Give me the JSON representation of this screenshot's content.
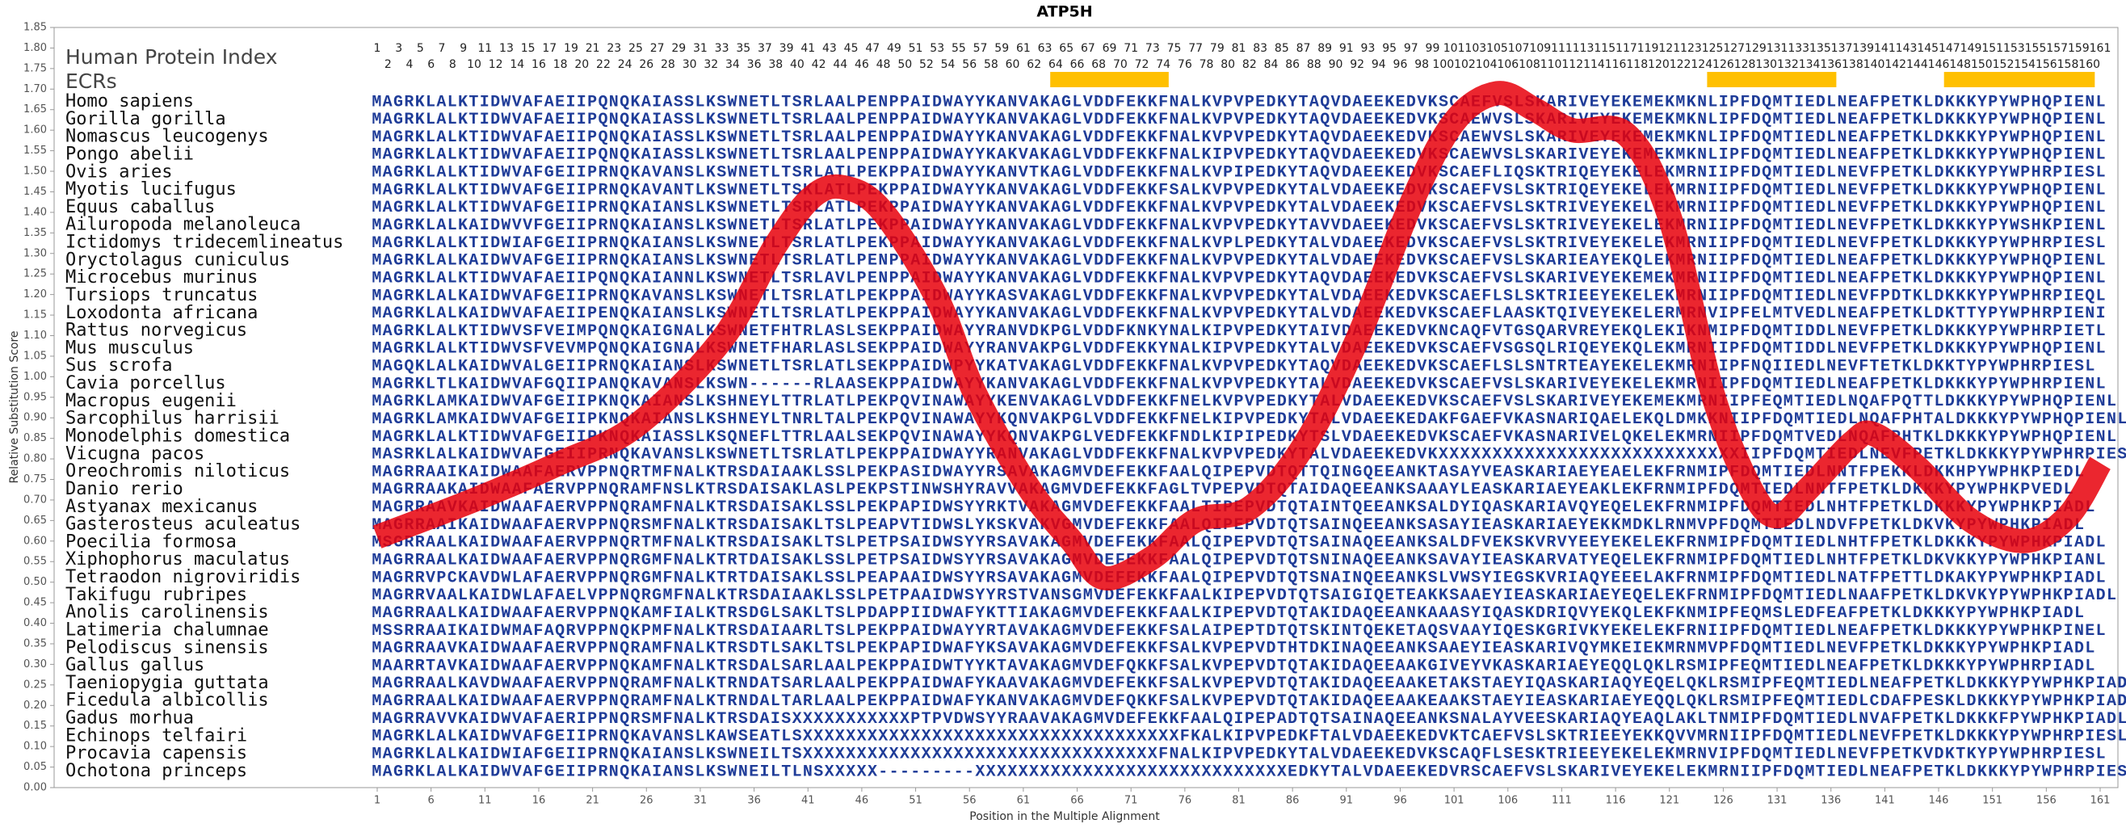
{
  "chart_data": {
    "type": "line",
    "title": "ATP5H",
    "xlabel": "Position in the Multiple Alignment",
    "ylabel": "Relative Substitution Score",
    "xlim": [
      1,
      161
    ],
    "ylim": [
      0,
      1.85
    ],
    "xticks": [
      1,
      6,
      11,
      16,
      21,
      26,
      31,
      36,
      41,
      46,
      51,
      56,
      61,
      66,
      71,
      76,
      81,
      86,
      91,
      96,
      101,
      106,
      111,
      116,
      121,
      126,
      131,
      136,
      141,
      146,
      151,
      156,
      161
    ],
    "yticks": [
      {
        "value": 0,
        "label": "0.00"
      },
      0.05,
      {
        "value": 0.1,
        "label": "0.10"
      },
      0.15,
      {
        "value": 0.2,
        "label": "0.20"
      },
      0.25,
      {
        "value": 0.3,
        "label": "0.30"
      },
      0.35,
      {
        "value": 0.4,
        "label": "0.40"
      },
      0.45,
      {
        "value": 0.5,
        "label": "0.50"
      },
      0.55,
      {
        "value": 0.6,
        "label": "0.60"
      },
      0.65,
      {
        "value": 0.7,
        "label": "0.70"
      },
      0.75,
      {
        "value": 0.8,
        "label": "0.80"
      },
      0.85,
      {
        "value": 0.9,
        "label": "0.90"
      },
      0.95,
      {
        "value": 1,
        "label": "1.00"
      },
      1.05,
      {
        "value": 1.1,
        "label": "1.10"
      },
      1.15,
      {
        "value": 1.2,
        "label": "1.20"
      },
      1.25,
      {
        "value": 1.3,
        "label": "1.30"
      },
      1.35,
      {
        "value": 1.4,
        "label": "1.40"
      },
      1.45,
      {
        "value": 1.5,
        "label": "1.50"
      },
      1.55,
      {
        "value": 1.6,
        "label": "1.60"
      },
      1.65,
      {
        "value": 1.7,
        "label": "1.70"
      },
      1.75,
      {
        "value": 1.8,
        "label": "1.80"
      },
      1.85
    ],
    "color": "#e8000b",
    "x": [
      1,
      10,
      18,
      25,
      33,
      38,
      41.5,
      44.5,
      48,
      53,
      56.5,
      61.5,
      65.5,
      68.5,
      73,
      77,
      82,
      87,
      92,
      97,
      101,
      105,
      108.5,
      112,
      117,
      121,
      125,
      128.5,
      131,
      134,
      138,
      140,
      144,
      149,
      154,
      158,
      161
    ],
    "values": [
      0.61,
      0.7,
      0.79,
      0.88,
      1.09,
      1.32,
      1.44,
      1.46,
      1.4,
      1.19,
      0.96,
      0.73,
      0.6,
      0.51,
      0.56,
      0.65,
      0.68,
      0.83,
      1.09,
      1.42,
      1.62,
      1.69,
      1.65,
      1.6,
      1.59,
      1.39,
      0.96,
      0.73,
      0.66,
      0.73,
      0.84,
      0.86,
      0.78,
      0.65,
      0.6,
      0.66,
      0.79
    ],
    "track_labels": [
      "Human Protein Index",
      "ECRs"
    ],
    "position_numbers": [
      1,
      2,
      3,
      4,
      5,
      6,
      7,
      8,
      9,
      10,
      11,
      12,
      13,
      14,
      15,
      16,
      17,
      18,
      19,
      20,
      21,
      22,
      23,
      24,
      25,
      26,
      27,
      28,
      29,
      30,
      31,
      32,
      33,
      34,
      35,
      36,
      37,
      38,
      39,
      40,
      41,
      42,
      43,
      44,
      45,
      46,
      47,
      48,
      49,
      50,
      51,
      52,
      53,
      54,
      55,
      56,
      57,
      58,
      59,
      60,
      61,
      62,
      63,
      64,
      65,
      66,
      67,
      68,
      69,
      70,
      71,
      72,
      73,
      74,
      75,
      76,
      77,
      78,
      79,
      80,
      81,
      82,
      83,
      84,
      85,
      86,
      87,
      88,
      89,
      90,
      91,
      92,
      93,
      94,
      95,
      96,
      97,
      98,
      99,
      100,
      101,
      102,
      103,
      104,
      105,
      106,
      107,
      108,
      109,
      110,
      111,
      112,
      113,
      114,
      115,
      116,
      117,
      118,
      119,
      120,
      121,
      122,
      123,
      124,
      125,
      126,
      127,
      128,
      129,
      130,
      131,
      132,
      133,
      134,
      135,
      136,
      137,
      138,
      139,
      140,
      141,
      142,
      143,
      144,
      145,
      146,
      147,
      148,
      149,
      150,
      151,
      152,
      153,
      154,
      155,
      156,
      157,
      158,
      159,
      160,
      161
    ],
    "ecr_color": "#ffc000",
    "ecrs": [
      [
        64,
        74
      ],
      [
        125,
        136
      ],
      [
        147,
        160
      ]
    ],
    "alignment": [
      {
        "species": "Homo sapiens",
        "sequence": "MAGRKLALKTIDWVAFAEIIPQNQKAIASSLKSWNETLTSRLAALPENPPAIDWAYYKANVAKAGLVDDFEKKFNALKVPVPEDKYTAQVDAEEKEDVKSCAEFVSLSKARIVEYEKEMEKMKNLIPFDQMTIEDLNEAFPETKLDKKKYPYWPHQPIENL"
      },
      {
        "species": "Gorilla gorilla",
        "sequence": "MAGRKLALKTIDWVAFAEIIPQNQKAIASSLKSWNETLTSRLAALPENPPAIDWAYYKANVAKAGLVDDFEKKFNALKVPVPEDKYTAQVDAEEKEDVKSCAEWVSLSKARIVEYEKEMEKMKNLIPFDQMTIEDLNEAFPETKLDKKKYPYWPHQPIENL"
      },
      {
        "species": "Nomascus leucogenys",
        "sequence": "MAGRKLALKTIDWVAFAEIIPQNQKAIASSLKSWNETLTSRLAALPENPPAIDWAYYKANVAKAGLVDDFEKKFNALKVPVPEDKYTAQVDAEEKEDVKSCAEWVSLSKARIVEYEKEMEKMKNLIPFDQMTIEDLNEAFPETKLDKKKYPYWPHQPIENL"
      },
      {
        "species": "Pongo abelii",
        "sequence": "MAGRKLALKTIDWVAFAEIIPQNQKAIASSLKSWNETLTSRLAALPENPPAIDWAYYKAKVAKAGLVDDFEKKFNALKIPVPEDKYTAQVDAEEKEDVKSCAEWVSLSKARIVEYEKEMEKMKNLIPFDQMTIEDLNEAFPETKLDKKKYPYWPHQPIENL"
      },
      {
        "species": "Ovis aries",
        "sequence": "MAGRKLALKTIDWVAFGEIIPRNQKAVANSLKSWNETLTSRLATLPEKPPAIDWAYYKANVTKAGLVDDFEKKFNALKVPIPEDKYTAQVDAEEKEDVKSCAEFLIQSKTRIQEYEKELEKMRNIIPFDQMTIEDLNEVFPETKLDKKKYPYWPHRPIESL"
      },
      {
        "species": "Myotis lucifugus",
        "sequence": "MAGRKLALKTIDWVAFGEIIPRNQKAVANTLKSWNETLTSKLATLPEKPPAIDWAYYKANVAKAGLVDDFEKKFSALKVPVPEDKYTALVDAEEKEDVKSCAEFVSLSKTRIQEYEKELEKMRNIIPFDQMTIEDLNEVFPETKLDKKKYPYWPHQPIENL"
      },
      {
        "species": "Equus caballus",
        "sequence": "MAGRKLALKTIDWVAFGEIIPRNQKAIANSLKSWNETLTSRLATLPEKPPAIDWAYYKANVAKAGLVDDFEKKFNALKVPVPEDKYTALVDAEEKEDVKSCAEFVSLSKTRIVEYEKELEKMRNIIPFDQMTIEDLNEVFPETKLDKKKYPYWPHQPIENL"
      },
      {
        "species": "Ailuropoda melanoleuca",
        "sequence": "MAGRKLALKAIDWVVFGEIIPRNQKAIANSLKSWNETLTSRLATLPEKPPAIDWAYYKANVAKAGLVDDFEKKFNALKVPVPEDKYTAVVDAEEKEDVKSCAEFVSLSKTRIVEYEKELEKMRNIIPFDQMTIEDLNEVFPETKLDKKKYPYWSHKPIENL"
      },
      {
        "species": "Ictidomys tridecemlineatus",
        "sequence": "MAGRKLALKTIDWIAFGEIIPRNQKAIANSLKSWNETLTSRLATLPEKPPAIDWAYYKANVAKAGLVDDFEKKFNALKVPLPEDKYTALVDAEEKEDVKSCAEFVSLSKTRIVEYEKELEKMRNIIPFDQMTIEDLNEVFPETKLDKKKYPYWPHRPIESL"
      },
      {
        "species": "Oryctolagus cuniculus",
        "sequence": "MAGRKLALKAIDWVAFGEIIPRNQKAIANSLKSWNETLTSRLATLPENPPAIDWAYYKANVAKAGLVDDFEKKFNALKVPVPEDKYTALVDAEEKEDVKSCAEFVSLSKARIEAYEKQLEKMRNIIPFDQMTIEDLNEAFPETKLDKKKYPYWPHQPIENL"
      },
      {
        "species": "Microcebus murinus",
        "sequence": "MAGRKLALKTIDWVAFAEIIPQNQKAIANNLKSWNETLTSRLAVLPENPPAIDWAYYKANVAKAGLVDDFEKKFNALKVPVPEDKYTAQVDAEEKEDVKSCAEFVSLSKARIVEYEKEMEKMRNIIPFDQMTIEDLNEAFPETKLDKKKYPYWPHQPIENL"
      },
      {
        "species": "Tursiops truncatus",
        "sequence": "MAGRKLALKAIDWVAFGEIIPRNQKAVANSLKSWNETLTSRLATLPEKPPAIDWAYYKASVAKAGLVDDFEKKFNALKVPVPEDKYTALVDAEEKEDVKSCAEFLSLSKTRIEEYEKELEKMRNIIPFDQMTIEDLNEVFPDTKLDKKKYPYWPHRPIEQL"
      },
      {
        "species": "Loxodonta africana",
        "sequence": "MAGRKLALKAIDWVAFAEIIPENQKAIANSLKSWNETLTSRLATLPEKPPAIDWAYYKANVAKAGLVDDFEKKFNALKVPVPEDKYTALVDAEEKEDVKSCAEFLAASKTQIVEYEKELERMRNVIPFELMTVEDLNEAFPETKLDKTTYPYWPHRPIENI"
      },
      {
        "species": "Rattus norvegicus",
        "sequence": "MAGRKLALKTIDWVSFVEIMPQNQKAIGNALKSWNETFHTRLASLSEKPPAIDWAYYRANVDKPGLVDDFKNKYNALKIPVPEDKYTAIVDAEEKEDVKNCAQFVTGSQARVREYEKQLEKIKNMIPFDQMTIDDLNEVFPETKLDKKKYPYWPHRPIETL"
      },
      {
        "species": "Mus musculus",
        "sequence": "MAGRKLALKTIDWVSFVEVMPQNQKAIGNALKSWNETFHARLASLSEKPPAIDWAYYRANVAKPGLVDDFEKKYNALKIPVPEDKYTALVDAEEKEDVKSCAEFVSGSQLRIQEYEKQLEKMRNIIPFDQMTIDDLNEVFPETKLDKKKYPYWPHQPIENL"
      },
      {
        "species": "Sus scrofa",
        "sequence": "MAGQKLALKAIDWVALGEIIPRNQKAIANSLKSWNETLTSRLATLSEKPPAIDWPYYKATVAKAGLVDDFEKKFNALKVPVPEDKYTAQVDAEEKEDVKSCAEFLSLSNTRTEAYEKELEKMRNIIPFNQIIEDLNEVFTETKLDKKTYPYWPHRPIESL"
      },
      {
        "species": "Cavia porcellus",
        "sequence": "MAGRKLTLKAIDWVAFGQIIPANQKAVANSLKSWN------RLAASEKPPAIDWAYYKANVAKAGLVDDFEKKFNALKVPVPEDKYTALVDAEEKEDVKSCAEFVSLSKARIVEYEKELEKMRNIIPFDQMTIEDLNEAFPETKLDKKKYPYWPHRPIENL"
      },
      {
        "species": "Macropus eugenii",
        "sequence": "MAGRKLAMKAIDWVAFGEIIPKNQKAIANSLKSHNEYLTTRLATLPEKPQVINAWAYYKENVAKAGLVDDFEKKFNELKVPVPEDKYTALVDAEEKEDVKSCAEFVSLSKARIVEYEKEMEKMRNIIPFEQMTIEDLNQAFPQTTLDKKKYPYWPHQPIENL"
      },
      {
        "species": "Sarcophilus harrisii",
        "sequence": "MAGRKLAMKAIDWVAFGEIIPKNQKAIANSLKSHNEYLTNRLTALPEKPQVINAWAYYKQNVAKPGLVDDFEKKFNELKIPVPEDKYTALVDAEEKEDAKFGAEFVKASNARIQAELEKQLDMKKNIIPFDQMTIEDLNQAFPHTALDKKKYPYWPHQPIENL"
      },
      {
        "species": "Monodelphis domestica",
        "sequence": "MAGRKLALKTIDWVAFGEIIPKNQKAIASSLKSQNEFLTTRLAALSEKPQVINAWAYYKQNVAKPGLVEDFEKKFNDLKIPIPEDKYTSLVDAEEKEDVKSCAEFVKASNARIVELQKELEKMRNIIPFDQMTVEDLNQAFPHTKLDKKKYPYWPHQPIENL"
      },
      {
        "species": "Vicugna pacos",
        "sequence": "MASRKLALKAIDWVAFGEIIPRNQKAVANSLKSWNETLTSRLATLPEKPPAIDWAYYRANVAKAGLVDDFEKKFNALKVPVPEDKYTALVDAEEKEDVKXXXXXXXXXXXXXXXXXXXXXXXXXXXXIIPFDQMTIEDLNEVFPETKLDKKKYPYWPHRPIESL"
      },
      {
        "species": "Oreochromis niloticus",
        "sequence": "MAGRRAAIKAIDWAAFAERVPPNQRTMFNALKTRSDAIAAKLSSLPEKPASIDWAYYRSAVAKAGMVDEFEKKFAALQIPEPVDTQTTQINGQEEANKTASAYVEASKARIAEYEAELEKFRNMIPFDQMTIEDLNNTFPEKKLDKKHPYWPHKPIEDL"
      },
      {
        "species": "Danio rerio",
        "sequence": "MAGRRAAKAIDWAAFAERVPPNQRAMFNSLKTRSDAISAKLASLPEKPSTINWSHYRAVVAKAGMVDEFEKKFAGLTVPEPVDTQTAIDAQEEANKSAAAYLEASKARIAEYEAKLEKFRNMIPFDQMTIEDLNNTFPETKLDKKKYPYWPHKPVEDL"
      },
      {
        "species": "Astyanax mexicanus",
        "sequence": "MAGRRAAVKAIDWAAFAERVPPNQRAMFNALKTRSDAISAKLSSLPEKPAPIDWSYYRKTVAKAGMVDEFEKKFAALTIPEPVDTQTAINTQEEANKSALDYIQASKARIAVQYEQELEKFRNMIPFDQMTIEDLNHTFPETKLDKKKYPYWPHKPIADL"
      },
      {
        "species": "Gasterosteus aculeatus",
        "sequence": "MAGRRAAIKAIDWAAFAERVPPNQRSMFNALKTRSDAISAKLTSLPEAPVTIDWSLYKSKVAKVGMVDEFEKKFAALQIPEPVDTQTSAINQEEANKSASAYIEASKARIAEYEKKMDKLRNMVPFDQMTIEDLNDVFPETKLDKVKYPYWPHKPIADL"
      },
      {
        "species": "Poecilia formosa",
        "sequence": "MSGRRAALKAIDWAAFAERVPPNQRTMFNALKTRSDAISAKLTSLPETPSAIDWSYYRSAVAKAGMVDEFEKKFAALQIPEPVDTQTSAINAQEEANKSALDFVEKSKVRVYEEYEKELEKFRNMIPFDQMTIEDLNHTFPETKLDKKKYPYWPHKPIADL"
      },
      {
        "species": "Xiphophorus maculatus",
        "sequence": "MAGRRAALKAIDWAAFAERVPPNQRGMFNALKTRTDAISAKLSSLPETPSAIDWSYYRSAVAKAGMVDEFEKKFAALQIPEPVDTQTSNINAQEEANKSAVAYIEASKARVATYEQELEKFRNMIPFDQMTIEDLNHTFPETKLDKVKKYPYWPHKPIANL"
      },
      {
        "species": "Tetraodon nigroviridis",
        "sequence": "MAGRRVPCKAVDWLAFAERVPPNQRGMFNALKTRTDAISAKLSSLPEAPAAIDWSYYRSAVAKAGMVDEFEKKFAALQIPEPVDTQTSNAINQEEANKSLVWSYIEGSKVRIAQYEEELAKFRNMIPFDQMTIEDLNATFPETTLDKAKYPYWPHKPIADL"
      },
      {
        "species": "Takifugu rubripes",
        "sequence": "MAGRRVAALKAIDWLAFAELVPPNQRGMFNALKTRSDAIAAKLSSLPETPAAIDWSYYRSTVANSGMVDEFEKKFAALKIPEPVDTQTSAIGIQETEAKKSAAEYIEASKARIAEYEQELEKFRNMIPFDQMTIEDLNAAFPETKLDKVKYPYWPHKPIADL"
      },
      {
        "species": "Anolis carolinensis",
        "sequence": "MAGRRAALKAIDWAAFAERVPPNQKAMFIALKTRSDGLSAKLTSLPDAPPIIDWAFYKTTIAKAGMVDEFEKKFAALKIPEPVDTQTAKIDAQEEANKAAASYIQASKDRIQVYEKQLEKFKNMIPFEQMSLEDFEAFPETKLDKKKYPYWPHKPIADL"
      },
      {
        "species": "Latimeria chalumnae",
        "sequence": "MSSRRAAIKAIDWMAFAQRVPPNQKPMFNALKTRSDAIAARLTSLPEKPPAIDWAYYRTAVAKAGMVDEFEKKFSALAIPEPTDTQTSKINTQEKETAQSVAAYIQESKGRIVKYEKELEKFRNIIPFDQMTIEDLNEAFPETKLDKKKYPYWPHKPINEL"
      },
      {
        "species": "Pelodiscus sinensis",
        "sequence": "MAGRRAAVKAIDWAAFAERVPPNQRAMFNALKTRSDTLSAKLTSLPEKPAPIDWAFYKSAVAKAGMVDEFEKKFSALKVPEPVDTHTDKINAQEEANKSAAEYIEASKARIVQYMKEIEKMRNMVPFDQMTIEDLNEVFPETKLDKKKYPYWPHKPIADL"
      },
      {
        "species": "Gallus gallus",
        "sequence": "MAARRTAVKAIDWAAFAERVPPNQKAMFNALKTRSDALSARLAALPEKPPAIDWTYYKTAVAKAGMVDEFQKKFSALKVPEPVDTQTAKIDAQEEAAKGIVEYVKASKARIAEYEQQLQKLRSMIPFEQMTIEDLNEAFPETKLDKKKYPYWPHRPIADL"
      },
      {
        "species": "Taeniopygia guttata",
        "sequence": "MAGRRAALKAVDWAAFAERVPPNQRAMFNALKTRNDATSARLAALPEKPPAIDWAFYKAAVAKAGMVDEFEKKFSALKVPEPVDTQTAKIDAQEEAAKETAKSTAEYIQASKARIAQYEQELQKLRSMIPFEQMTIEDLNEAFPETKLDKKKYPYWPHKPIADL"
      },
      {
        "species": "Ficedula albicollis",
        "sequence": "MAGRRAALKAIDWAAFAERVPPNQRAMFNALKTRNDALTARLAALPEKPPAIDWAFYKANVAKAGMVDEFQKKFSALKVPEPVDTQTAKIDAQEEAAKEAAKSTAEYIEASKARIAEYEQQLQKLRSMIPFEQMTIEDLCDAFPESKLDKKKYPYWPHKPIADL"
      },
      {
        "species": "Gadus morhua",
        "sequence": "MAGRRAVVKAIDWVAFAERIPPNQRSMFNALKTRSDAISXXXXXXXXXXXPTPVDWSYYRAAVAKAGMVDEFEKKFAALQIPEPADTQTSAINAQEEANKSNALAYVEESKARIAQYEAQLAKLTNMIPFDQMTIEDLNVAFPETKLDKKKFPYWPHKPIADL"
      },
      {
        "species": "Echinops telfairi",
        "sequence": "MAGRKLALKAIDWVAFGEIIPRNQKAVANSLKAWSEATLSXXXXXXXXXXXXXXXXXXXXXXXXXXXXXXXXXXXFKALKIPVPEDKFTALVDAEEKEDVKTCAEFVSLSKTRIEEYEKKQVVMRNIIPFDQMTIEDLNEVFPETKLDKKKYPYWPHRPIESL"
      },
      {
        "species": "Procavia capensis",
        "sequence": "MAGRKLALKAIDWIAFGEIIPRNQKAIANSLKSWNEILTSXXXXXXXXXXXXXXXXXXXXXXXXXXXXXXXXXFNALKIPVPEDKYTALVDAEEKEDVKSCAQFLSESKTRIEEYEKELEKMRNVIPFDQMTIEDLNEVFPETKVDKTKYPYWPHRPIESL"
      },
      {
        "species": "Ochotona princeps",
        "sequence": "MAGRKLALKAIDWVAFGEIIPRNQKAIANSLKSWNEILTLNSXXXXX---------XXXXXXXXXXXXXXXXXXXXXXXXXXXXXEDKYTALVDAEEKEDVRSCAEFVSLSKARIVEYEKELEKMRNIIPFDQMTIEDLNEAFPETKLDKKKYPYWPHRPIESL"
      }
    ]
  }
}
